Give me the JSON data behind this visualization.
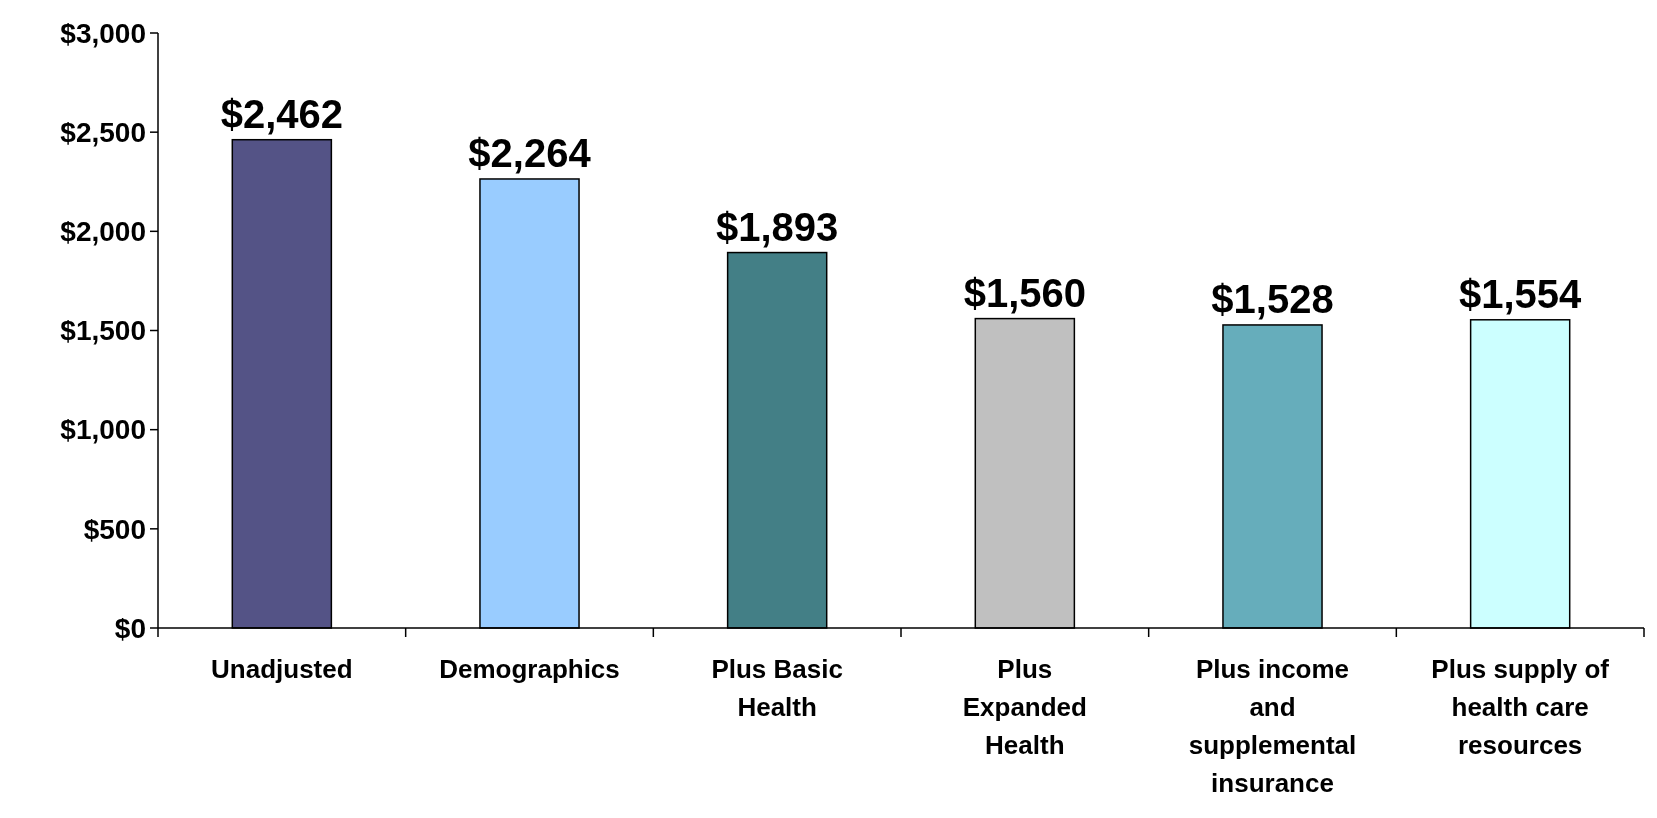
{
  "chart_data": {
    "type": "bar",
    "categories": [
      "Unadjusted",
      "Demographics",
      "Plus Basic Health",
      "Plus Expanded Health",
      "Plus income and supplemental insurance",
      "Plus supply of health care resources"
    ],
    "values": [
      2462,
      2264,
      1893,
      1560,
      1528,
      1554
    ],
    "colors": [
      "#545386",
      "#99ccff",
      "#437f86",
      "#c0c0c0",
      "#66adbb",
      "#ccffff"
    ],
    "ylim": [
      0,
      3000
    ],
    "yticks": [
      {
        "value": 0,
        "label": "$0"
      },
      {
        "value": 500,
        "label": "$500"
      },
      {
        "value": 1000,
        "label": "$1,000"
      },
      {
        "value": 1500,
        "label": "$1,500"
      },
      {
        "value": 2000,
        "label": "$2,000"
      },
      {
        "value": 2500,
        "label": "$2,500"
      },
      {
        "value": 3000,
        "label": "$3,000"
      }
    ],
    "value_labels": [
      "$2,462",
      "$2,264",
      "$1,893",
      "$1,560",
      "$1,528",
      "$1,554"
    ],
    "grid": false
  }
}
